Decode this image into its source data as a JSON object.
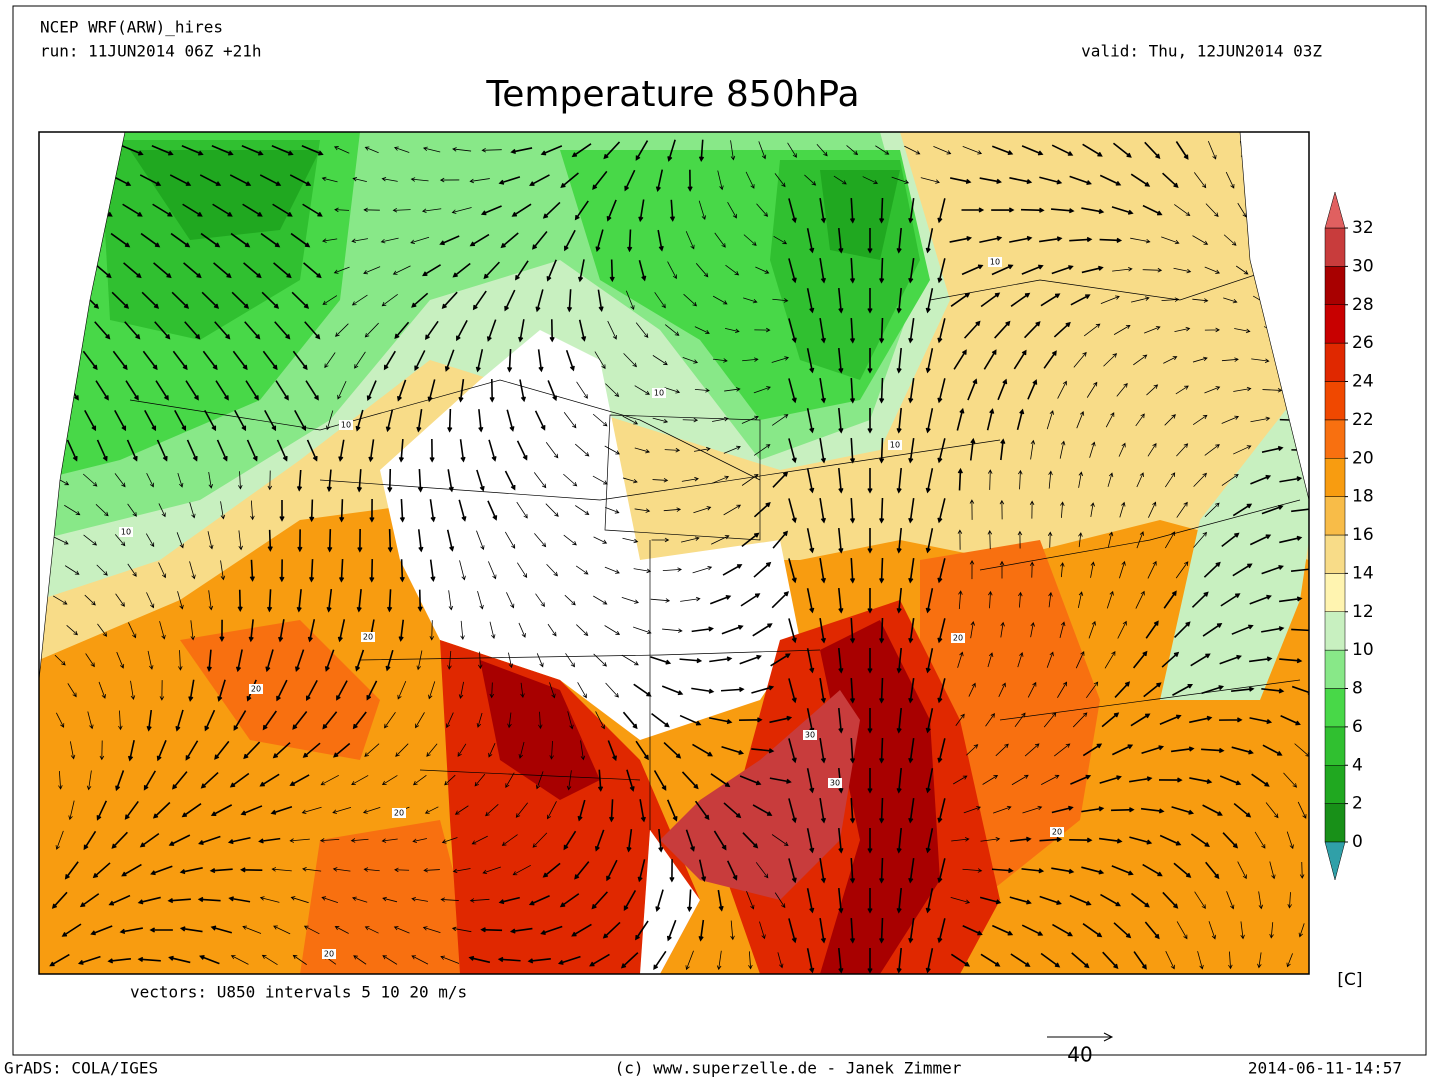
{
  "header": {
    "model": "NCEP WRF(ARW)_hires",
    "run": "run: 11JUN2014 06Z +21h",
    "valid": "valid: Thu, 12JUN2014 03Z",
    "title": "Temperature 850hPa"
  },
  "map": {
    "contour_labels": [
      10,
      10,
      10,
      10,
      10,
      20,
      20,
      20,
      20,
      20,
      20,
      30,
      30
    ],
    "vectors_note": "vectors: U850 intervals 5 10 20 m/s",
    "reference_vector": "40"
  },
  "colorbar": {
    "ticks": [
      0,
      2,
      4,
      6,
      8,
      10,
      12,
      14,
      16,
      18,
      20,
      22,
      24,
      26,
      28,
      30,
      32
    ],
    "colors": [
      "#189018",
      "#20a820",
      "#30c030",
      "#48d848",
      "#88e888",
      "#c8f0c0",
      "#fff4b0",
      "#f8dc88",
      "#f8bc48",
      "#f89c10",
      "#f87010",
      "#f04800",
      "#e02800",
      "#c80000",
      "#a80000",
      "#c83c3c"
    ],
    "under_color": "#30a0a8",
    "over_color": "#e06060",
    "unit": "[C]"
  },
  "footer": {
    "left": "GrADS: COLA/IGES",
    "center": "(c) www.superzelle.de - Janek Zimmer",
    "right": "2014-06-11-14:57"
  }
}
